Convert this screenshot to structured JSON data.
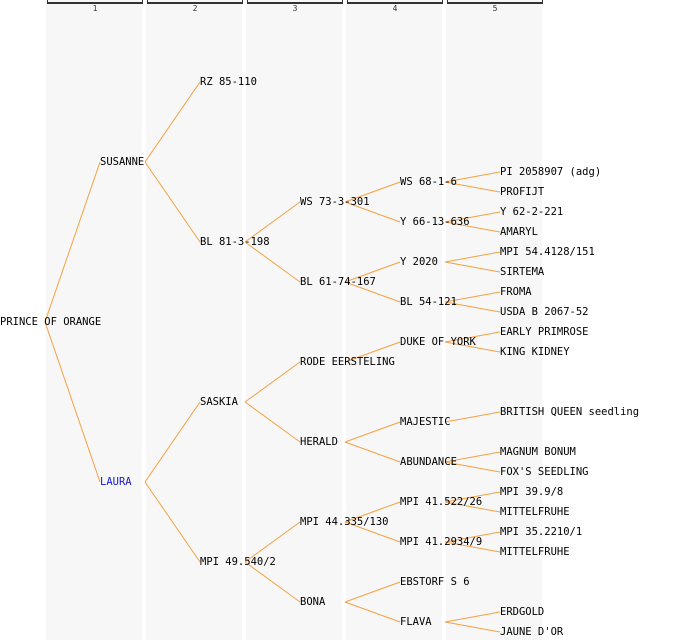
{
  "columns": [
    "1",
    "2",
    "3",
    "4",
    "5"
  ],
  "colors": {
    "line": "#f5a142",
    "highlight": "#1a1acc",
    "column_bg": "#f7f7f7"
  },
  "tree": {
    "label": "PRINCE OF ORANGE",
    "children": [
      {
        "label": "SUSANNE",
        "children": [
          {
            "label": "RZ 85-110"
          },
          {
            "label": "BL 81-3-198",
            "children": [
              {
                "label": "WS 73-3-301",
                "children": [
                  {
                    "label": "WS 68-1-6",
                    "children": [
                      {
                        "label": "PI 2058907 (adg)"
                      },
                      {
                        "label": "PROFIJT"
                      }
                    ]
                  },
                  {
                    "label": "Y 66-13-636",
                    "children": [
                      {
                        "label": "Y 62-2-221"
                      },
                      {
                        "label": "AMARYL"
                      }
                    ]
                  }
                ]
              },
              {
                "label": "BL 61-74-167",
                "children": [
                  {
                    "label": "Y 2020",
                    "children": [
                      {
                        "label": "MPI 54.4128/151"
                      },
                      {
                        "label": "SIRTEMA"
                      }
                    ]
                  },
                  {
                    "label": "BL 54-121",
                    "children": [
                      {
                        "label": "FROMA"
                      },
                      {
                        "label": "USDA B 2067-52"
                      }
                    ]
                  }
                ]
              }
            ]
          }
        ]
      },
      {
        "label": "LAURA",
        "highlight": true,
        "children": [
          {
            "label": "SASKIA",
            "children": [
              {
                "label": "RODE EERSTELING",
                "children": [
                  {
                    "label": "DUKE OF YORK",
                    "children": [
                      {
                        "label": "EARLY PRIMROSE"
                      },
                      {
                        "label": "KING KIDNEY"
                      }
                    ]
                  }
                ]
              },
              {
                "label": "HERALD",
                "children": [
                  {
                    "label": "MAJESTIC",
                    "children": [
                      {
                        "label": "BRITISH QUEEN seedling"
                      }
                    ]
                  },
                  {
                    "label": "ABUNDANCE",
                    "children": [
                      {
                        "label": "MAGNUM BONUM"
                      },
                      {
                        "label": "FOX'S SEEDLING"
                      }
                    ]
                  }
                ]
              }
            ]
          },
          {
            "label": "MPI 49.540/2",
            "children": [
              {
                "label": "MPI 44.335/130",
                "children": [
                  {
                    "label": "MPI 41.522/26",
                    "children": [
                      {
                        "label": "MPI 39.9/8"
                      },
                      {
                        "label": "MITTELFRUHE"
                      }
                    ]
                  },
                  {
                    "label": "MPI 41.2934/9",
                    "children": [
                      {
                        "label": "MPI 35.2210/1"
                      },
                      {
                        "label": "MITTELFRUHE"
                      }
                    ]
                  }
                ]
              },
              {
                "label": "BONA",
                "children": [
                  {
                    "label": "EBSTORF S 6"
                  },
                  {
                    "label": "FLAVA",
                    "children": [
                      {
                        "label": "ERDGOLD"
                      },
                      {
                        "label": "JAUNE D'OR"
                      }
                    ]
                  }
                ]
              }
            ]
          }
        ]
      }
    ]
  }
}
